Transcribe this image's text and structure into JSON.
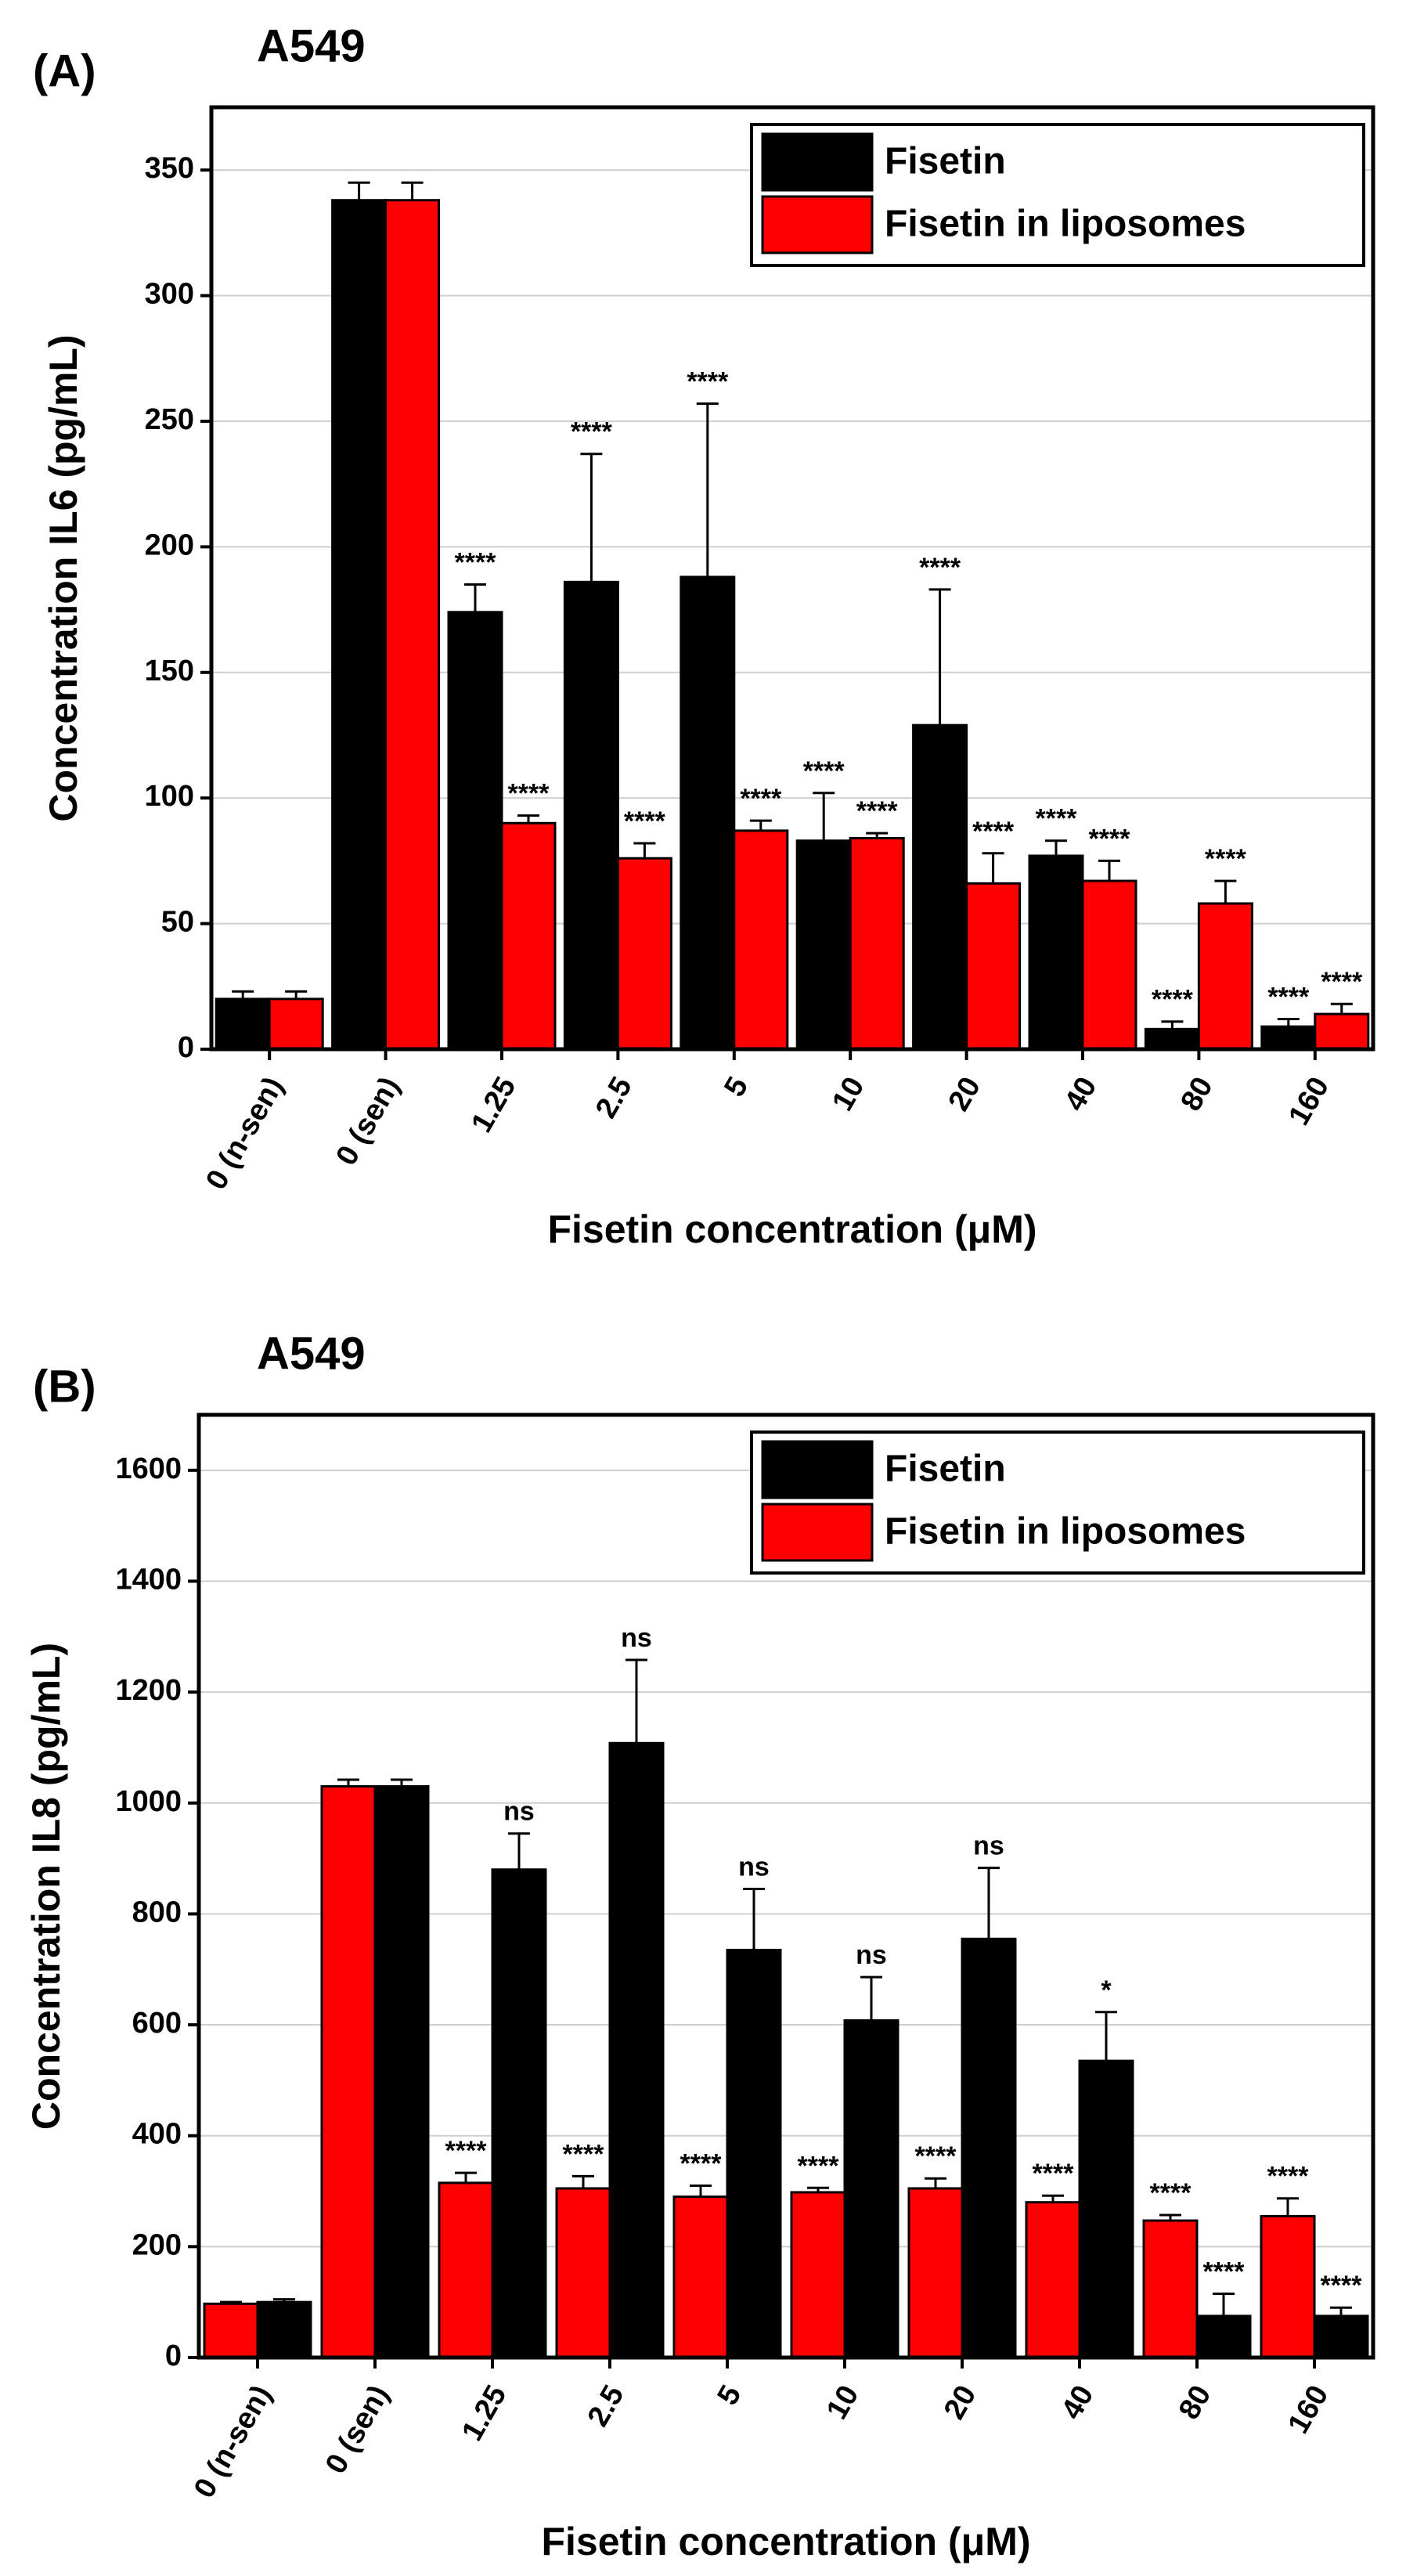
{
  "chart_data": [
    {
      "type": "bar",
      "panel": "(A)",
      "title": "A549",
      "x_label": "Fisetin concentration (μM)",
      "y_label": "Concentration IL6 (pg/mL)",
      "categories": [
        "0 (n-sen)",
        "0 (sen)",
        "1.25",
        "2.5",
        "5",
        "10",
        "20",
        "40",
        "80",
        "160"
      ],
      "series": [
        {
          "name": "Fisetin",
          "color": "#000000",
          "values": [
            20,
            338,
            174,
            186,
            188,
            83,
            129,
            77,
            8,
            9
          ],
          "errors": [
            3,
            7,
            11,
            51,
            69,
            19,
            54,
            6,
            3,
            3
          ],
          "annotations": [
            null,
            null,
            "****",
            "****",
            "****",
            "****",
            "****",
            "****",
            "****",
            "****"
          ]
        },
        {
          "name": "Fisetin in liposomes",
          "color": "#ff0000",
          "values": [
            20,
            338,
            90,
            76,
            87,
            84,
            66,
            67,
            58,
            14
          ],
          "errors": [
            3,
            7,
            3,
            6,
            4,
            2,
            12,
            8,
            9,
            4
          ],
          "annotations": [
            null,
            null,
            "****",
            "****",
            "****",
            "****",
            "****",
            "****",
            "****",
            "****"
          ]
        }
      ],
      "ylim": [
        0,
        375
      ],
      "yticks": [
        0,
        50,
        100,
        150,
        200,
        250,
        300,
        350
      ],
      "grid": true,
      "legend": "upper right",
      "legend_reversed": false
    },
    {
      "type": "bar",
      "panel": "(B)",
      "title": "A549",
      "x_label": "Fisetin concentration (μM)",
      "y_label": "Concentration IL8 (pg/mL)",
      "categories": [
        "0 (n-sen)",
        "0 (sen)",
        "1.25",
        "2.5",
        "5",
        "10",
        "20",
        "40",
        "80",
        "160"
      ],
      "series": [
        {
          "name": "Fisetin in liposomes",
          "color": "#ff0000",
          "values": [
            97,
            1030,
            315,
            305,
            290,
            298,
            305,
            280,
            247,
            255
          ],
          "errors": [
            3,
            12,
            18,
            22,
            20,
            8,
            18,
            12,
            10,
            32
          ],
          "annotations": [
            null,
            null,
            "****",
            "****",
            "****",
            "****",
            "****",
            "****",
            "****",
            "****"
          ]
        },
        {
          "name": "Fisetin",
          "color": "#000000",
          "values": [
            100,
            1030,
            880,
            1108,
            735,
            608,
            755,
            535,
            75,
            75
          ],
          "errors": [
            5,
            12,
            65,
            150,
            110,
            78,
            128,
            88,
            40,
            15
          ],
          "annotations": [
            null,
            null,
            "ns",
            "ns",
            "ns",
            "ns",
            "ns",
            "*",
            "****",
            "****"
          ]
        }
      ],
      "ylim": [
        0,
        1700
      ],
      "yticks": [
        0,
        200,
        400,
        600,
        800,
        1000,
        1200,
        1400,
        1600
      ],
      "grid": true,
      "legend": "upper right",
      "legend_reversed": true
    }
  ]
}
